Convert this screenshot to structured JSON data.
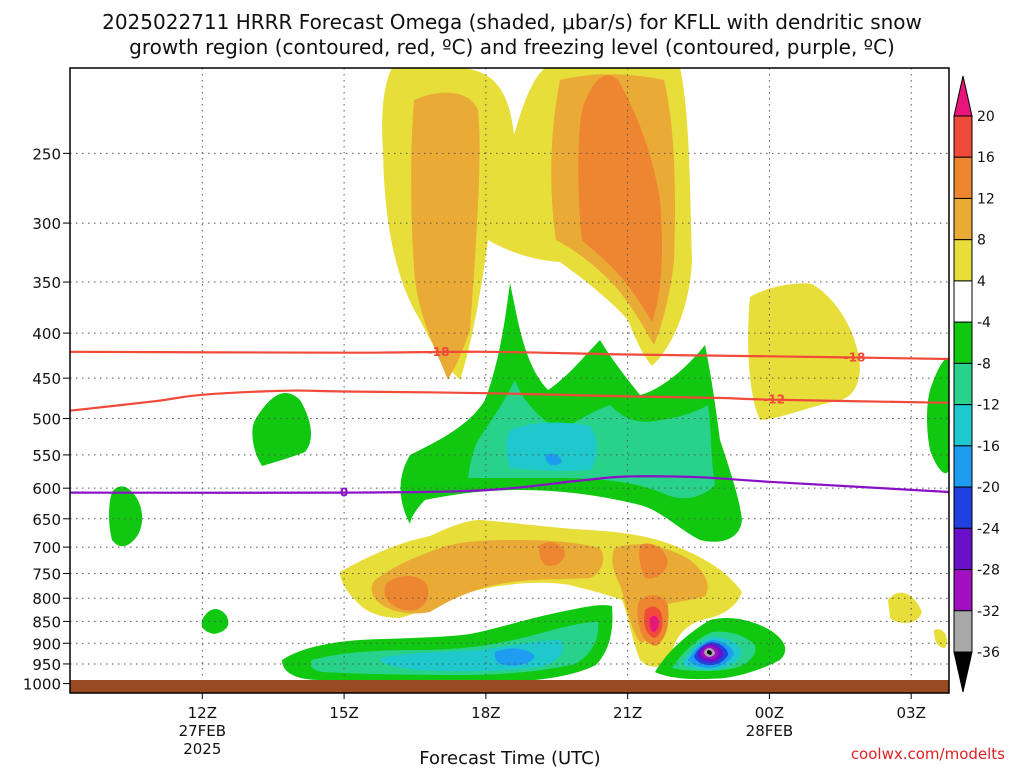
{
  "chart_data": {
    "type": "contour",
    "title_line1": "2025022711 HRRR Forecast Omega (shaded, μbar/s) for KFLL with dendritic snow",
    "title_line2": "growth region (contoured, red, ºC) and freezing level (contoured, purple, ºC)",
    "xlabel": "Forecast Time (UTC)",
    "credit": "coolwx.com/modelts",
    "y_axis": {
      "scale": "log-pressure",
      "units": "hPa",
      "range": [
        1025,
        200
      ],
      "ticks": [
        250,
        300,
        350,
        400,
        450,
        500,
        550,
        600,
        650,
        700,
        750,
        800,
        850,
        900,
        950,
        1000
      ]
    },
    "x_axis": {
      "range_hours": [
        -2.8,
        15.8
      ],
      "ticks": [
        {
          "hour": 0,
          "label": "12Z",
          "sub1": "27FEB",
          "sub2": "2025"
        },
        {
          "hour": 3,
          "label": "15Z",
          "sub1": "",
          "sub2": ""
        },
        {
          "hour": 6,
          "label": "18Z",
          "sub1": "",
          "sub2": ""
        },
        {
          "hour": 9,
          "label": "21Z",
          "sub1": "",
          "sub2": ""
        },
        {
          "hour": 12,
          "label": "00Z",
          "sub1": "28FEB",
          "sub2": ""
        },
        {
          "hour": 15,
          "label": "03Z",
          "sub1": "",
          "sub2": ""
        }
      ]
    },
    "grid": true,
    "colorbar": {
      "levels": [
        {
          "label": "20",
          "color": "#e8157a"
        },
        {
          "label": "16",
          "color": "#f04a3a"
        },
        {
          "label": "12",
          "color": "#ee8530"
        },
        {
          "label": "8",
          "color": "#e9aa36"
        },
        {
          "label": "4",
          "color": "#e8de3a"
        },
        {
          "label": "-4",
          "color": "#ffffff"
        },
        {
          "label": "-8",
          "color": "#10c810"
        },
        {
          "label": "-12",
          "color": "#28d28a"
        },
        {
          "label": "-16",
          "color": "#1ec8cc"
        },
        {
          "label": "-20",
          "color": "#1e9cf0"
        },
        {
          "label": "-24",
          "color": "#2040e0"
        },
        {
          "label": "-28",
          "color": "#6a10c8"
        },
        {
          "label": "-32",
          "color": "#a010c0"
        },
        {
          "label": "-36",
          "color": "#a8a8a8"
        },
        {
          "label": "",
          "color": "#000000"
        }
      ]
    },
    "contours": [
      {
        "name": "-18",
        "color": "#f04a3a",
        "label_hours": [
          5.0,
          13.8
        ],
        "points": [
          [
            -2.8,
            420
          ],
          [
            3,
            421
          ],
          [
            6,
            420
          ],
          [
            9,
            423
          ],
          [
            12,
            425
          ],
          [
            15.8,
            428
          ]
        ]
      },
      {
        "name": "-12",
        "color": "#f04a3a",
        "label_hours": [
          12.1
        ],
        "points": [
          [
            -2.8,
            490
          ],
          [
            -1,
            478
          ],
          [
            0,
            470
          ],
          [
            1.8,
            465
          ],
          [
            3,
            466
          ],
          [
            6,
            468
          ],
          [
            9,
            472
          ],
          [
            11,
            474
          ],
          [
            12,
            476
          ],
          [
            15.8,
            480
          ]
        ]
      },
      {
        "name": "0",
        "color": "#8a10c8",
        "label_hours": [
          3.0
        ],
        "points": [
          [
            -2.8,
            607
          ],
          [
            3,
            607
          ],
          [
            6,
            603
          ],
          [
            8,
            588
          ],
          [
            9,
            582
          ],
          [
            10.5,
            583
          ],
          [
            12,
            590
          ],
          [
            15.8,
            606
          ]
        ]
      }
    ]
  }
}
